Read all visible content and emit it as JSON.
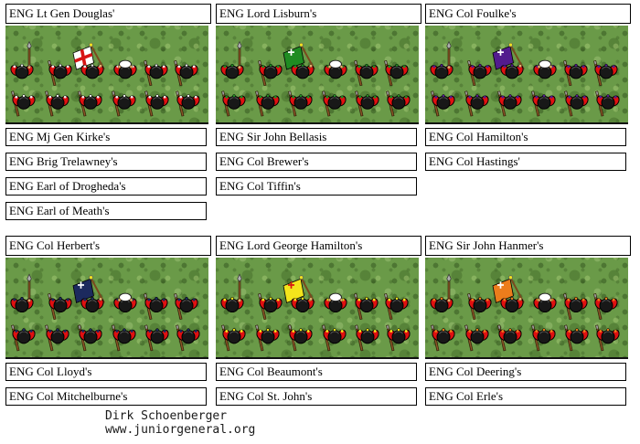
{
  "units": [
    {
      "title": "ENG Lt Gen Douglas'",
      "flag": {
        "field": "#ffffff",
        "emblem": "#d81414",
        "style": "full-cross"
      },
      "trim": "#ececec"
    },
    {
      "title": "ENG Lord Lisburn's",
      "flag": {
        "field": "#1f8c22",
        "emblem": "#ffffff",
        "style": "canton-cross"
      },
      "trim": "#1f8c22"
    },
    {
      "title": "ENG Col Foulke's",
      "flag": {
        "field": "#521c8e",
        "emblem": "#ffffff",
        "style": "canton-cross"
      },
      "trim": "#521c8e"
    },
    {
      "title": "ENG Col Herbert's",
      "flag": {
        "field": "#1c2a5e",
        "emblem": "#ffffff",
        "style": "canton-cross"
      },
      "trim": "#1c2a5e"
    },
    {
      "title": "ENG Lord George Hamilton's",
      "flag": {
        "field": "#f3e51c",
        "emblem": "#d81414",
        "style": "canton-cross"
      },
      "trim": "#f3e51c"
    },
    {
      "title": "ENG Sir John Hanmer's",
      "flag": {
        "field": "#ec7d1c",
        "emblem": "#ffffff",
        "style": "canton-cross"
      },
      "trim": "#ec7d1c"
    }
  ],
  "labels": [
    {
      "items": [
        "ENG Mj Gen Kirke's",
        "ENG Brig Trelawney's",
        "ENG Earl of Drogheda's",
        "ENG Earl of Meath's"
      ]
    },
    {
      "items": [
        "ENG Sir John Bellasis",
        "ENG Col Brewer's",
        "ENG Col Tiffin's"
      ]
    },
    {
      "items": [
        "ENG Col Hamilton's",
        "ENG Col Hastings'"
      ]
    },
    {
      "items": [
        "ENG Col Lloyd's",
        "ENG Col Mitchelburne's"
      ]
    },
    {
      "items": [
        "ENG Col Beaumont's",
        "ENG Col St. John's"
      ]
    },
    {
      "items": [
        "ENG Col Deering's",
        "ENG Col Erle's"
      ]
    }
  ],
  "credits": {
    "line1": "Dirk Schoenberger",
    "line2": "www.juniorgeneral.org"
  },
  "palette": {
    "coat_red": "#e01010",
    "coat_shadow": "#9a0606",
    "hat_black": "#181818",
    "hat_rim": "#4e4e4e",
    "musket_brown": "#8a5526",
    "musket_dark": "#2e1c08",
    "muzzle_gray": "#9f9f9f",
    "spear_gray": "#b0b0b0",
    "skin": "#e8b072",
    "finial_yellow": "#f0e020",
    "pole_brown": "#7a4a1e",
    "grass_green": "#6a9a48",
    "drum_white": "#ffffff"
  }
}
